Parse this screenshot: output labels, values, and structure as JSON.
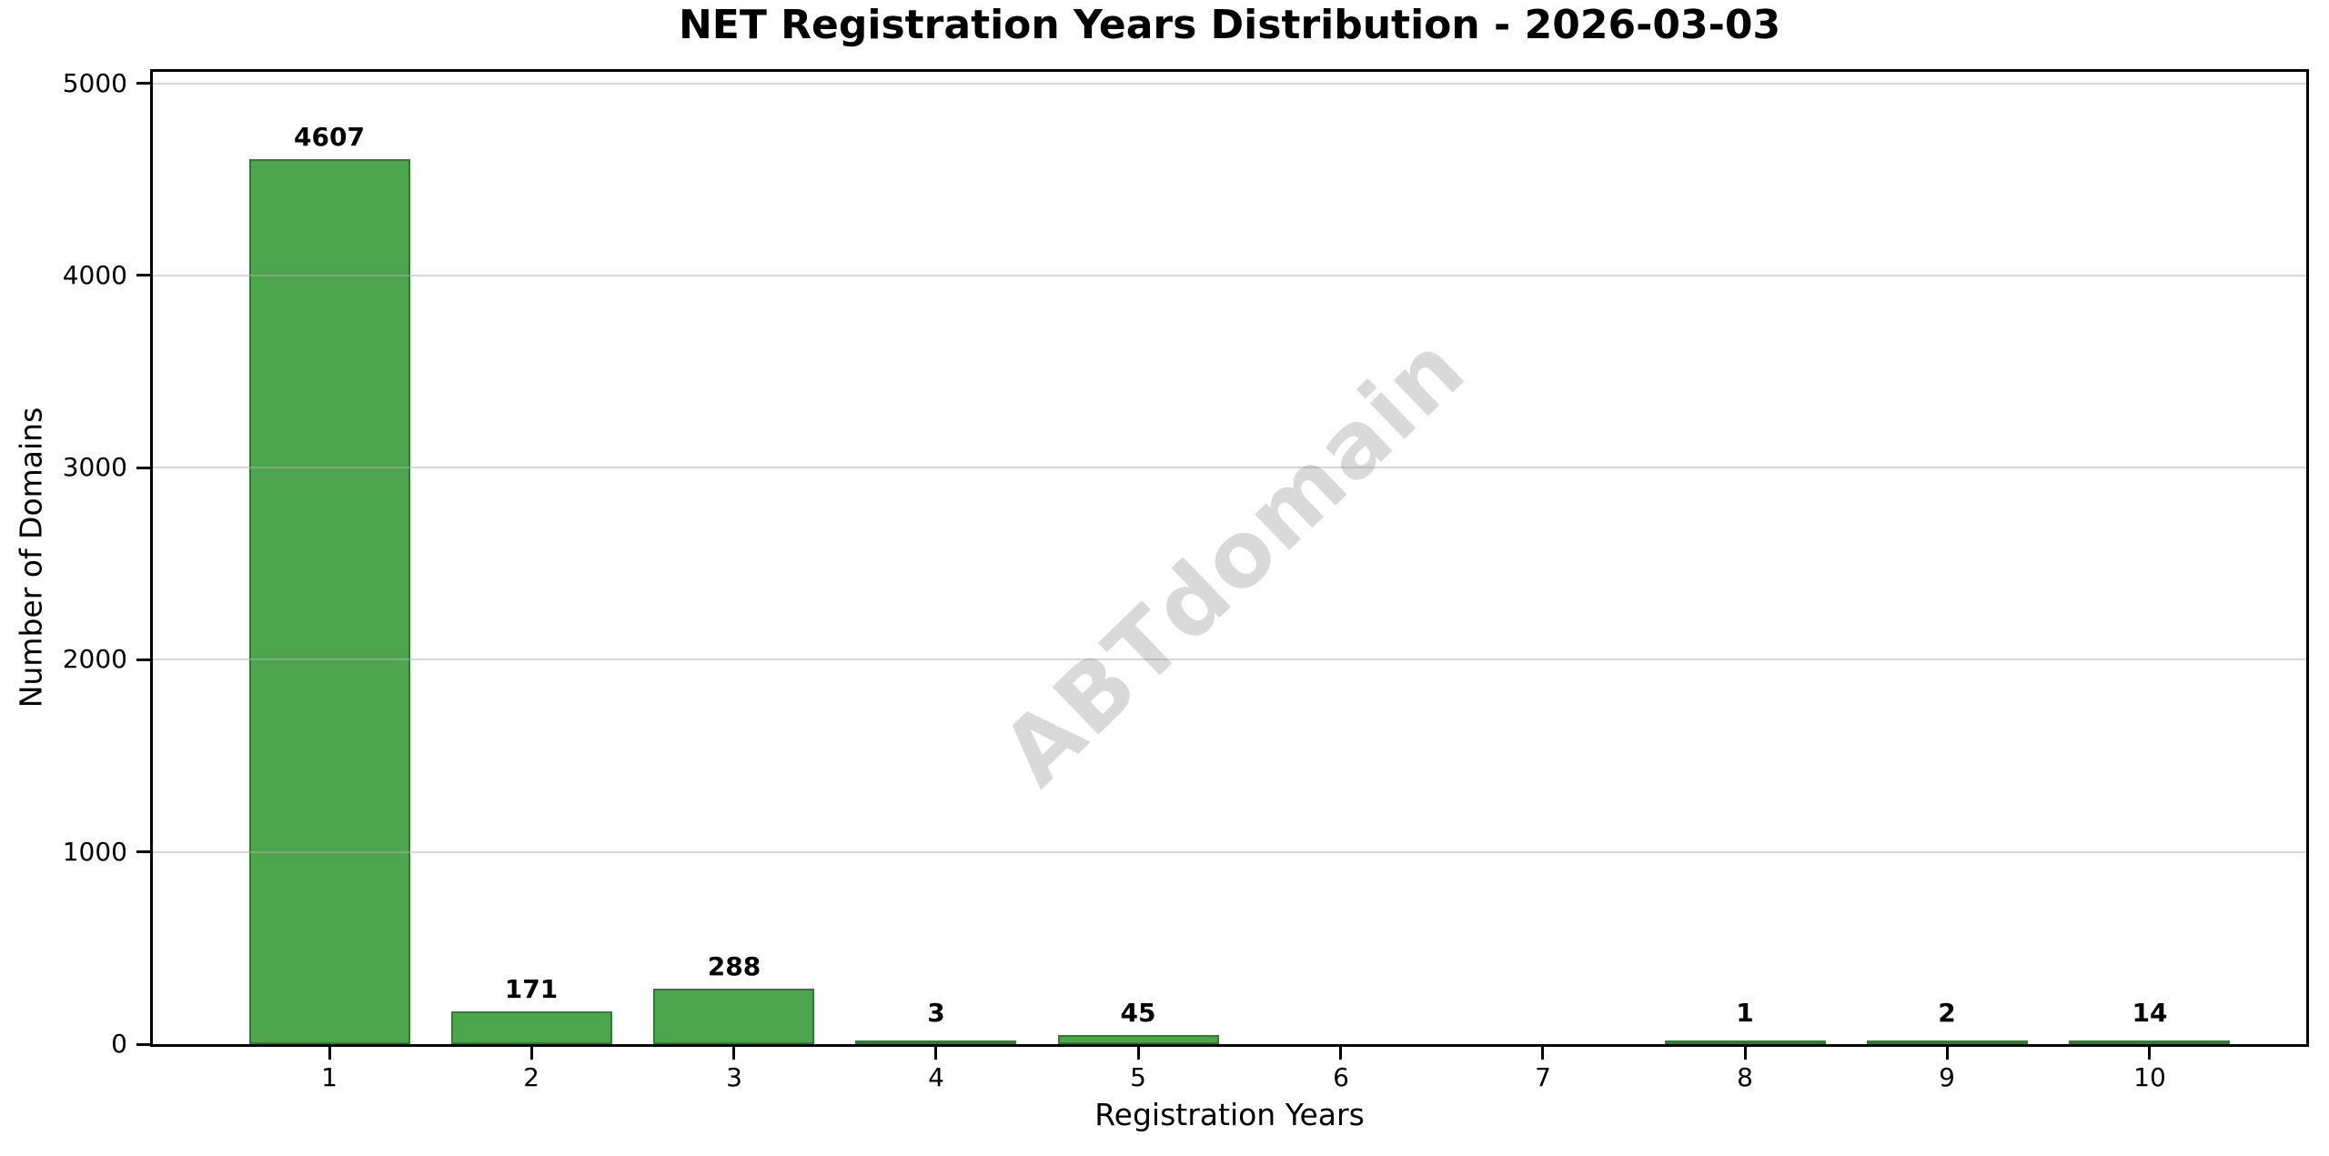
{
  "title": "NET Registration Years Distribution - 2026-03-03",
  "watermark": "ABTdomain",
  "chart_data": {
    "type": "bar",
    "title": "NET Registration Years Distribution - 2026-03-03",
    "xlabel": "Registration Years",
    "ylabel": "Number of Domains",
    "categories": [
      "1",
      "2",
      "3",
      "4",
      "5",
      "6",
      "7",
      "8",
      "9",
      "10"
    ],
    "values": [
      4607,
      171,
      288,
      3,
      45,
      0,
      0,
      1,
      2,
      14
    ],
    "bar_labels": [
      "4607",
      "171",
      "288",
      "3",
      "45",
      "",
      "",
      "1",
      "2",
      "14"
    ],
    "yticks": [
      0,
      1000,
      2000,
      3000,
      4000,
      5000
    ],
    "ylim": [
      0,
      5060
    ],
    "grid": "horizontal, drawn over bars",
    "legend": "none",
    "colors": {
      "bar_fill": "#4DA64D",
      "bar_edge": "#2E7D32",
      "grid": "#B0B0B0",
      "text": "#000000",
      "watermark": "#808080",
      "background": "#FFFFFF"
    }
  }
}
